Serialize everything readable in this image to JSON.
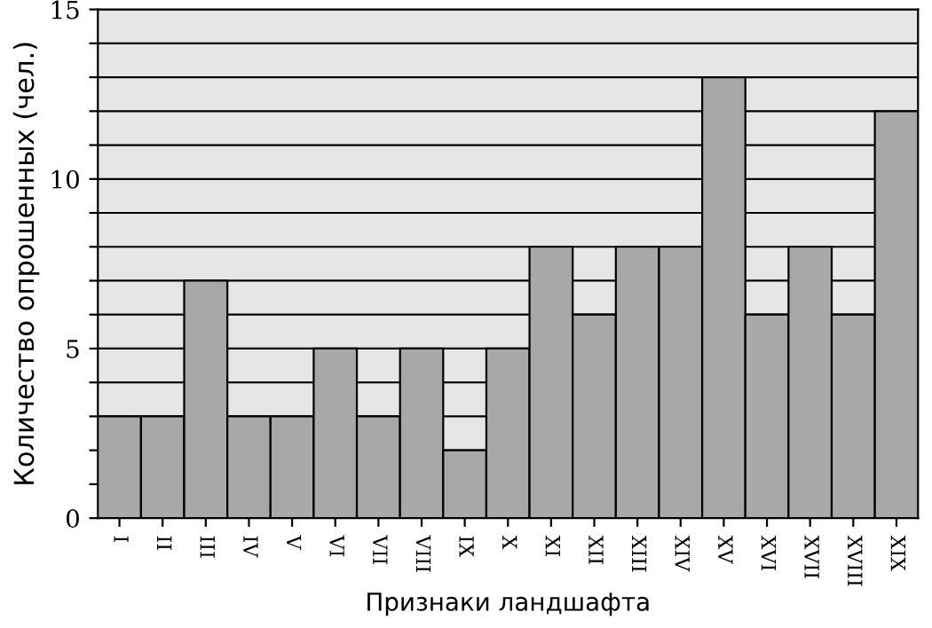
{
  "chart_data": {
    "type": "bar",
    "xlabel": "Признаки ландшафта",
    "ylabel": "Количество опрошенных (чел.)",
    "categories": [
      "I",
      "II",
      "III",
      "IV",
      "V",
      "VI",
      "VII",
      "VIII",
      "IX",
      "X",
      "XI",
      "XII",
      "XIII",
      "XIV",
      "XV",
      "XVI",
      "XVII",
      "XVIII",
      "XIX"
    ],
    "values": [
      3,
      3,
      7,
      3,
      3,
      5,
      3,
      5,
      2,
      5,
      8,
      6,
      8,
      8,
      13,
      6,
      8,
      6,
      12
    ],
    "color": "#a8a8a8",
    "ylim": [
      0,
      15
    ],
    "yticks": [
      0,
      {
        "value": 1,
        "label": null
      },
      {
        "value": 2,
        "label": null
      },
      {
        "value": 3,
        "label": null
      },
      {
        "value": 4,
        "label": null
      },
      5,
      {
        "value": 6,
        "label": null
      },
      {
        "value": 7,
        "label": null
      },
      {
        "value": 8,
        "label": null
      },
      {
        "value": 9,
        "label": null
      },
      10,
      {
        "value": 11,
        "label": null
      },
      {
        "value": 12,
        "label": null
      },
      {
        "value": 13,
        "label": null
      },
      {
        "value": 14,
        "label": null
      },
      15
    ],
    "grid": "y",
    "legend": false
  }
}
